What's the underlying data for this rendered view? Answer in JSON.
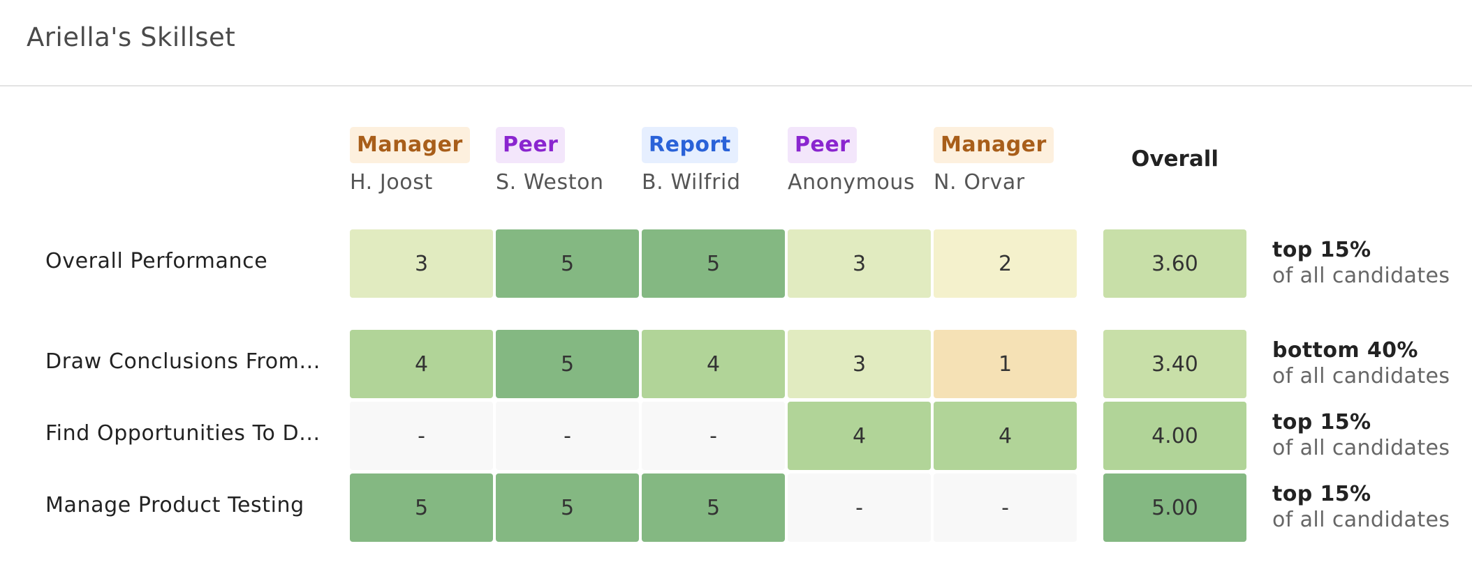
{
  "title": "Ariella's Skillset",
  "reviewers": [
    {
      "role": "Manager",
      "name": "H. Joost"
    },
    {
      "role": "Peer",
      "name": "S. Weston"
    },
    {
      "role": "Report",
      "name": "B. Wilfrid"
    },
    {
      "role": "Peer",
      "name": "Anonymous"
    },
    {
      "role": "Manager",
      "name": "N. Orvar"
    }
  ],
  "overall_label": "Overall",
  "rows": [
    {
      "label": "Overall Performance",
      "scores": [
        "3",
        "5",
        "5",
        "3",
        "2"
      ],
      "overall": "3.60",
      "rank": "top 15%",
      "rank_note": "of all candidates"
    },
    {
      "label": "Draw Conclusions From...",
      "scores": [
        "4",
        "5",
        "4",
        "3",
        "1"
      ],
      "overall": "3.40",
      "rank": "bottom 40%",
      "rank_note": "of all candidates"
    },
    {
      "label": "Find Opportunities To D...",
      "scores": [
        "-",
        "-",
        "-",
        "4",
        "4"
      ],
      "overall": "4.00",
      "rank": "top 15%",
      "rank_note": "of all candidates"
    },
    {
      "label": "Manage Product Testing",
      "scores": [
        "5",
        "5",
        "5",
        "-",
        "-"
      ],
      "overall": "5.00",
      "rank": "top 15%",
      "rank_note": "of all candidates"
    }
  ],
  "colors": {
    "score_1": "#f5e1b5",
    "score_2": "#f4f1cc",
    "score_3": "#e1ebc0",
    "score_4": "#b1d498",
    "score_5": "#84b882",
    "score_none": "#f8f8f8",
    "overall_low": "#c8dfa8",
    "overall_high": "#84b882"
  }
}
